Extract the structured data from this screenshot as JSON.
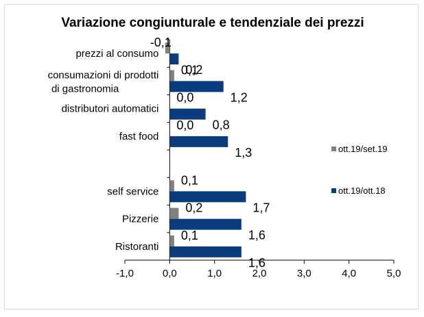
{
  "chart_data": {
    "type": "bar",
    "orientation": "horizontal",
    "title": "Variazione congiunturale e tendenziale dei prezzi",
    "categories": [
      "prezzi al consumo",
      "consumazioni di prodotti di gastronomia",
      "distributori automatici",
      "fast food",
      "",
      "self service",
      "Pizzerie",
      "Ristoranti"
    ],
    "series": [
      {
        "name": "ott.19/set.19",
        "color": "#808080",
        "values": [
          -0.1,
          0.1,
          0.0,
          0.0,
          null,
          0.1,
          0.2,
          0.1
        ],
        "labels": [
          "-0,1",
          "0,1",
          "0,0",
          "0,0",
          "",
          "0,1",
          "0,2",
          "0,1"
        ]
      },
      {
        "name": "ott.19/ott.18",
        "color": "#0b3c7d",
        "values": [
          0.2,
          1.2,
          0.8,
          1.3,
          null,
          1.7,
          1.6,
          1.6
        ],
        "labels": [
          "0,2",
          "1,2",
          "0,8",
          "1,3",
          "",
          "1,7",
          "1,6",
          "1,6"
        ]
      }
    ],
    "xlim": [
      -1.0,
      5.0
    ],
    "xticks": [
      -1,
      0,
      1,
      2,
      3,
      4,
      5
    ],
    "xtick_labels": [
      "-1,0",
      "0,0",
      "1,0",
      "2,0",
      "3,0",
      "4,0",
      "5,0"
    ],
    "legend_position": "right",
    "grid": false
  }
}
